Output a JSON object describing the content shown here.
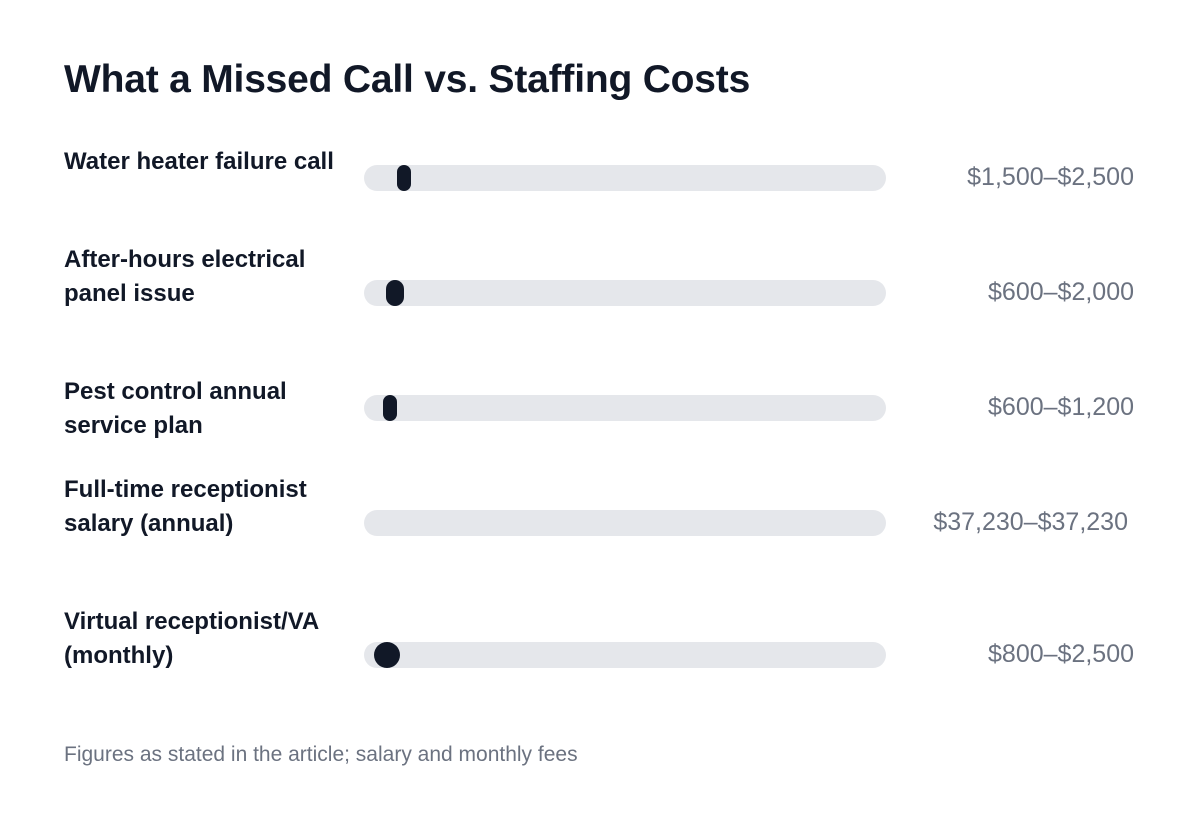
{
  "chart_data": {
    "type": "range-bar",
    "title": "What a Missed Call vs. Staffing Costs",
    "xlim": [
      0,
      40000
    ],
    "rows": [
      {
        "label": "Water heater failure call",
        "low": 1500,
        "high": 2500,
        "display": "$1,500–$2,500"
      },
      {
        "label": "After-hours electrical panel issue",
        "low": 600,
        "high": 2000,
        "display": "$600–$2,000"
      },
      {
        "label": "Pest control annual service plan",
        "low": 600,
        "high": 1200,
        "display": "$600–$1,200"
      },
      {
        "label": "Full-time receptionist salary (annual)",
        "low": 37230,
        "high": 37230,
        "display": "$37,230–$37,230"
      },
      {
        "label": "Virtual receptionist/VA (monthly)",
        "low": 800,
        "high": 2500,
        "display": "$800–$2,500"
      }
    ],
    "footnote": "Figures as stated in the article; salary and monthly fees",
    "colors": {
      "track": "#e5e7eb",
      "range": "#111827",
      "label": "#111827",
      "value": "#6b7280"
    }
  }
}
